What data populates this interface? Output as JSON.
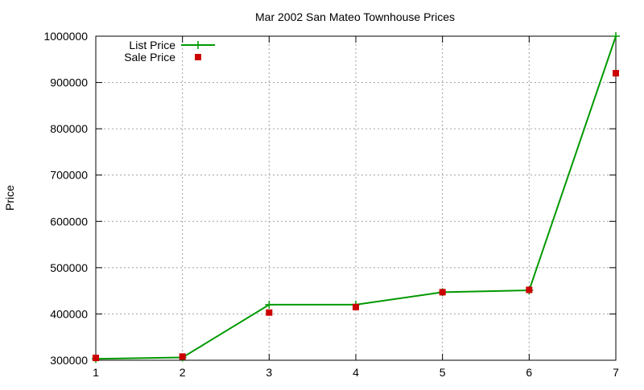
{
  "chart_data": {
    "type": "line",
    "title": "Mar 2002 San Mateo Townhouse Prices",
    "xlabel": "",
    "ylabel": "Price",
    "xlim": [
      1,
      7
    ],
    "ylim": [
      300000,
      1000000
    ],
    "x_ticks": [
      "1",
      "2",
      "3",
      "4",
      "5",
      "6",
      "7"
    ],
    "y_ticks": [
      "300000",
      "400000",
      "500000",
      "600000",
      "700000",
      "800000",
      "900000",
      "1000000"
    ],
    "grid": true,
    "legend_position": "top-left",
    "x": [
      1,
      2,
      3,
      4,
      5,
      6,
      7
    ],
    "series": [
      {
        "name": "List Price",
        "style": "linespoints",
        "color": "#009900",
        "marker": "plus",
        "values": [
          303000,
          306000,
          420000,
          420000,
          447000,
          451000,
          1000000
        ]
      },
      {
        "name": "Sale Price",
        "style": "points",
        "color": "#cc0000",
        "marker": "square",
        "values": [
          305000,
          308000,
          403000,
          415000,
          447000,
          452000,
          920000
        ]
      }
    ]
  }
}
